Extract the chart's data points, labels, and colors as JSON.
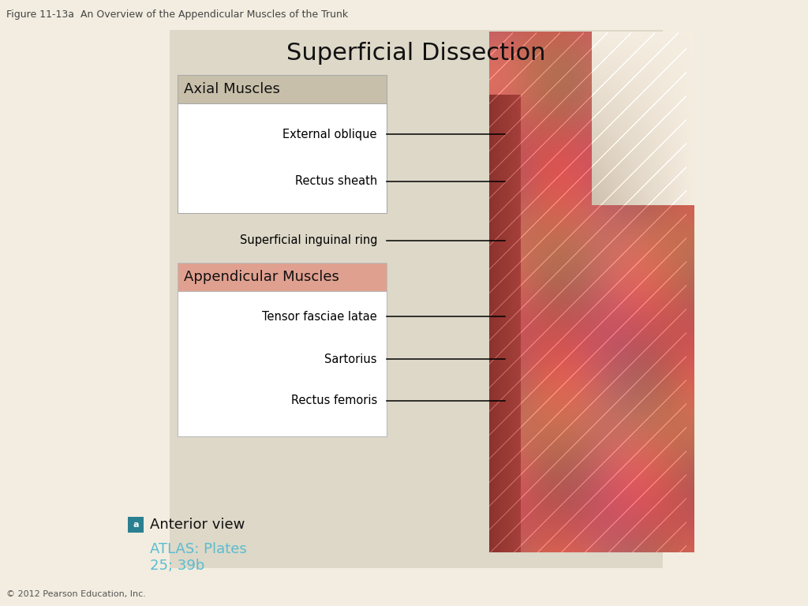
{
  "figure_title": "Figure 11-13a  An Overview of the Appendicular Muscles of the Trunk",
  "main_title": "Superficial Dissection",
  "bg_color": "#ddd8c8",
  "white_bg": "#ffffff",
  "axial_header_color": "#c8bfaa",
  "appendicular_header_color": "#e0a090",
  "axial_title": "Axial Muscles",
  "appendicular_title": "Appendicular Muscles",
  "axial_labels": [
    "External oblique",
    "Rectus sheath"
  ],
  "between_label": "Superficial inguinal ring",
  "appendicular_labels": [
    "Tensor fasciae latae",
    "Sartorius",
    "Rectus femoris"
  ],
  "atlas_color": "#5abcd0",
  "atlas_text": "ATLAS: Plates\n25; 39b",
  "anterior_text": "Anterior view",
  "copyright_text": "© 2012 Pearson Education, Inc.",
  "box_a_color": "#2a8090",
  "figure_bg": "#f2ede0"
}
